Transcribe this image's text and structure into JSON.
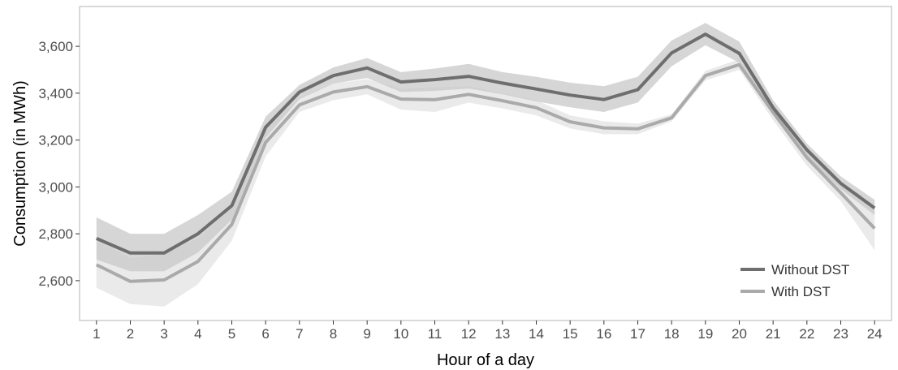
{
  "chart_data": {
    "type": "line",
    "title": "",
    "xlabel": "Hour of a day",
    "ylabel": "Consumption (in MWh)",
    "x": [
      1,
      2,
      3,
      4,
      5,
      6,
      7,
      8,
      9,
      10,
      11,
      12,
      13,
      14,
      15,
      16,
      17,
      18,
      19,
      20,
      21,
      22,
      23,
      24
    ],
    "xlim": [
      0.5,
      24.5
    ],
    "ylim": [
      2430,
      3770
    ],
    "yticks": [
      2600,
      2800,
      3000,
      3200,
      3400,
      3600
    ],
    "ytick_labels": [
      "2,600",
      "2,800",
      "3,000",
      "3,200",
      "3,400",
      "3,600"
    ],
    "xtick_labels": [
      "1",
      "2",
      "3",
      "4",
      "5",
      "6",
      "7",
      "8",
      "9",
      "10",
      "11",
      "12",
      "13",
      "14",
      "15",
      "16",
      "17",
      "18",
      "19",
      "20",
      "21",
      "22",
      "23",
      "24"
    ],
    "grid": false,
    "legend_position": "bottom-right",
    "series": [
      {
        "name": "Without DST",
        "color": "#6e6e6e",
        "band_color": "#c8c8c8",
        "values": [
          2780,
          2718,
          2718,
          2800,
          2920,
          3255,
          3405,
          3475,
          3508,
          3448,
          3458,
          3472,
          3443,
          3418,
          3392,
          3373,
          3415,
          3572,
          3652,
          3570,
          3338,
          3158,
          3015,
          2910
        ],
        "lower": [
          2690,
          2640,
          2640,
          2720,
          2860,
          3210,
          3375,
          3440,
          3465,
          3405,
          3410,
          3420,
          3395,
          3365,
          3340,
          3320,
          3360,
          3515,
          3605,
          3530,
          3310,
          3130,
          2990,
          2880
        ],
        "upper": [
          2870,
          2800,
          2800,
          2880,
          2980,
          3300,
          3435,
          3510,
          3550,
          3490,
          3505,
          3525,
          3490,
          3470,
          3445,
          3430,
          3470,
          3625,
          3700,
          3620,
          3370,
          3185,
          3045,
          2945
        ]
      },
      {
        "name": "With DST",
        "color": "#aaaaaa",
        "band_color": "#e6e6e6",
        "values": [
          2668,
          2597,
          2603,
          2682,
          2840,
          3190,
          3350,
          3405,
          3428,
          3375,
          3372,
          3395,
          3368,
          3338,
          3278,
          3252,
          3248,
          3295,
          3475,
          3522,
          3318,
          3125,
          2975,
          2823
        ],
        "lower": [
          2570,
          2500,
          2490,
          2585,
          2770,
          3130,
          3320,
          3370,
          3395,
          3330,
          3320,
          3360,
          3335,
          3305,
          3250,
          3225,
          3225,
          3280,
          3455,
          3500,
          3285,
          3090,
          2940,
          2730
        ],
        "upper": [
          2770,
          2695,
          2715,
          2780,
          2910,
          3250,
          3380,
          3440,
          3460,
          3420,
          3425,
          3430,
          3400,
          3370,
          3305,
          3280,
          3270,
          3310,
          3495,
          3545,
          3350,
          3160,
          3010,
          2910
        ]
      }
    ]
  }
}
